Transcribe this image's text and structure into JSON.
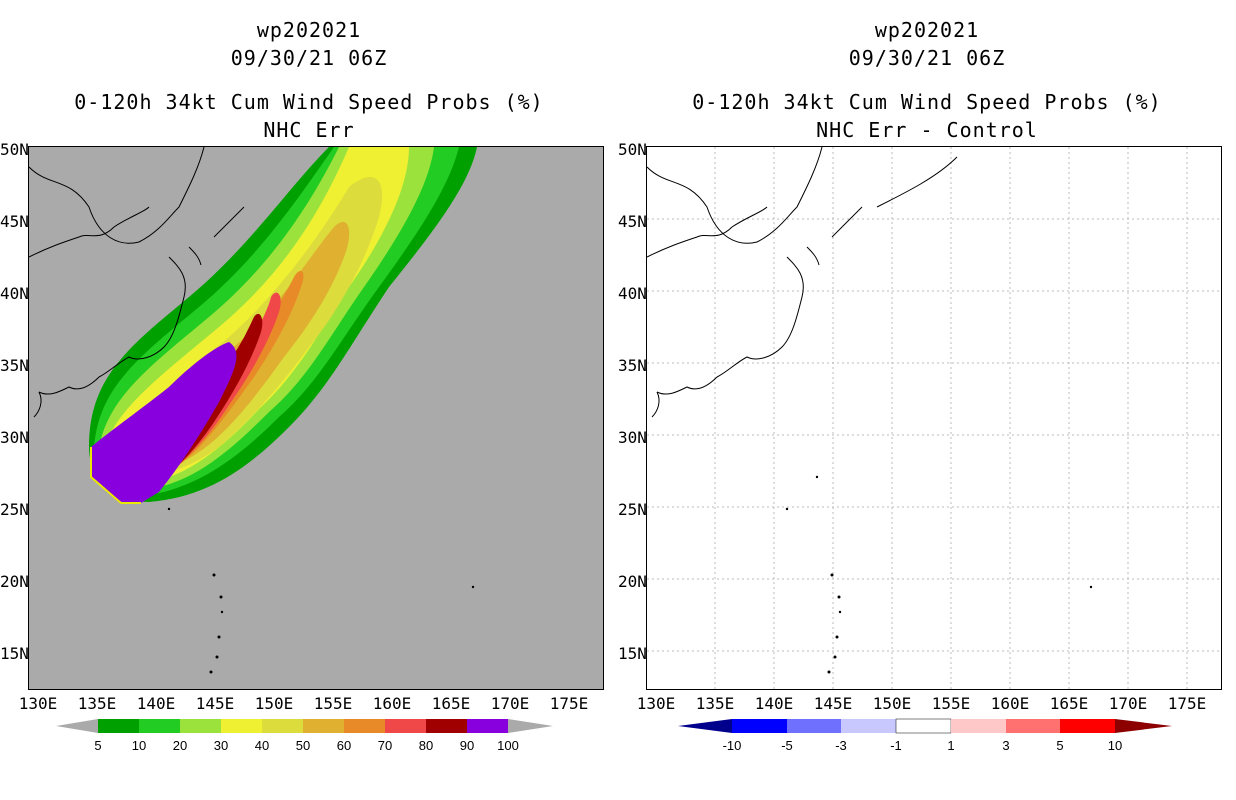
{
  "left_panel": {
    "title_line1": "wp202021",
    "title_line2": "09/30/21 06Z",
    "title_line3": "0-120h 34kt Cum Wind Speed Probs (%)",
    "title_line4": "NHC Err",
    "map_background": "#aaaaaa",
    "colorbar_labels": [
      "5",
      "10",
      "20",
      "30",
      "40",
      "50",
      "60",
      "70",
      "80",
      "90",
      "100"
    ],
    "colorbar_colors": [
      "#00a000",
      "#22cc22",
      "#9be33c",
      "#f0f032",
      "#dcdc3c",
      "#e0b030",
      "#e88a28",
      "#f04848",
      "#a00000",
      "#8800dd"
    ]
  },
  "right_panel": {
    "title_line1": "wp202021",
    "title_line2": "09/30/21 06Z",
    "title_line3": "0-120h 34kt Cum Wind Speed Probs (%)",
    "title_line4": "NHC Err - Control",
    "map_background": "#ffffff",
    "colorbar_labels": [
      "-10",
      "-5",
      "-3",
      "-1",
      "1",
      "3",
      "5",
      "10"
    ],
    "colorbar_colors": [
      "#00008c",
      "#0000ff",
      "#7070ff",
      "#c8c8ff",
      "#ffffff",
      "#ffc8c8",
      "#ff7070",
      "#ff0000",
      "#8c0000"
    ]
  },
  "axes": {
    "lat_labels": [
      "50N",
      "45N",
      "40N",
      "35N",
      "30N",
      "25N",
      "20N",
      "15N"
    ],
    "lon_labels": [
      "130E",
      "135E",
      "140E",
      "145E",
      "150E",
      "155E",
      "160E",
      "165E",
      "170E",
      "175E"
    ]
  }
}
